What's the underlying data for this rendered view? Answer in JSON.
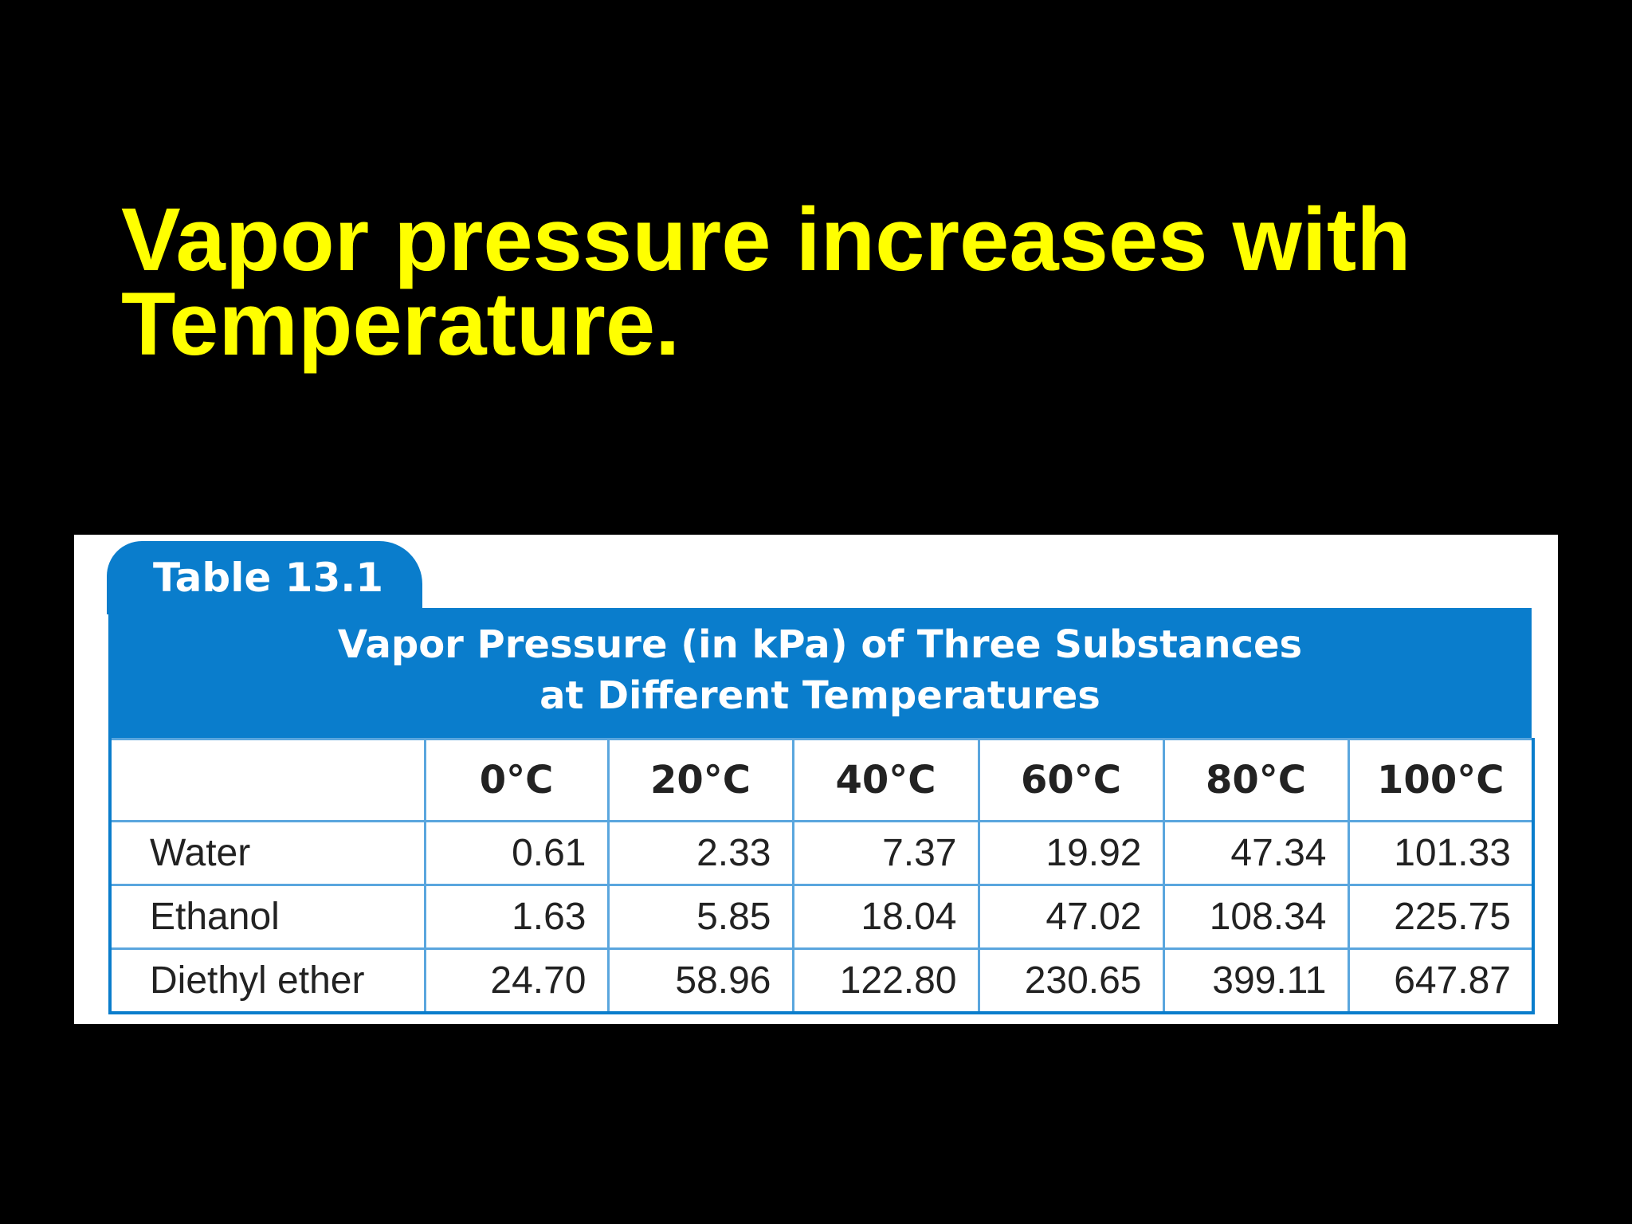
{
  "slide": {
    "title_line1": "Vapor pressure increases with",
    "title_line2": "Temperature.",
    "title_color": "#ffff00",
    "background_color": "#000000"
  },
  "table": {
    "tab_label": "Table 13.1",
    "caption_line1": "Vapor Pressure (in kPa) of Three Substances",
    "caption_line2": "at Different Temperatures",
    "accent_color": "#0a7dcc",
    "columns": [
      "",
      "0°C",
      "20°C",
      "40°C",
      "60°C",
      "80°C",
      "100°C"
    ],
    "rows": [
      {
        "label": "Water",
        "values": [
          "0.61",
          "2.33",
          "7.37",
          "19.92",
          "47.34",
          "101.33"
        ]
      },
      {
        "label": "Ethanol",
        "values": [
          "1.63",
          "5.85",
          "18.04",
          "47.02",
          "108.34",
          "225.75"
        ]
      },
      {
        "label": "Diethyl ether",
        "values": [
          "24.70",
          "58.96",
          "122.80",
          "230.65",
          "399.11",
          "647.87"
        ]
      }
    ]
  }
}
